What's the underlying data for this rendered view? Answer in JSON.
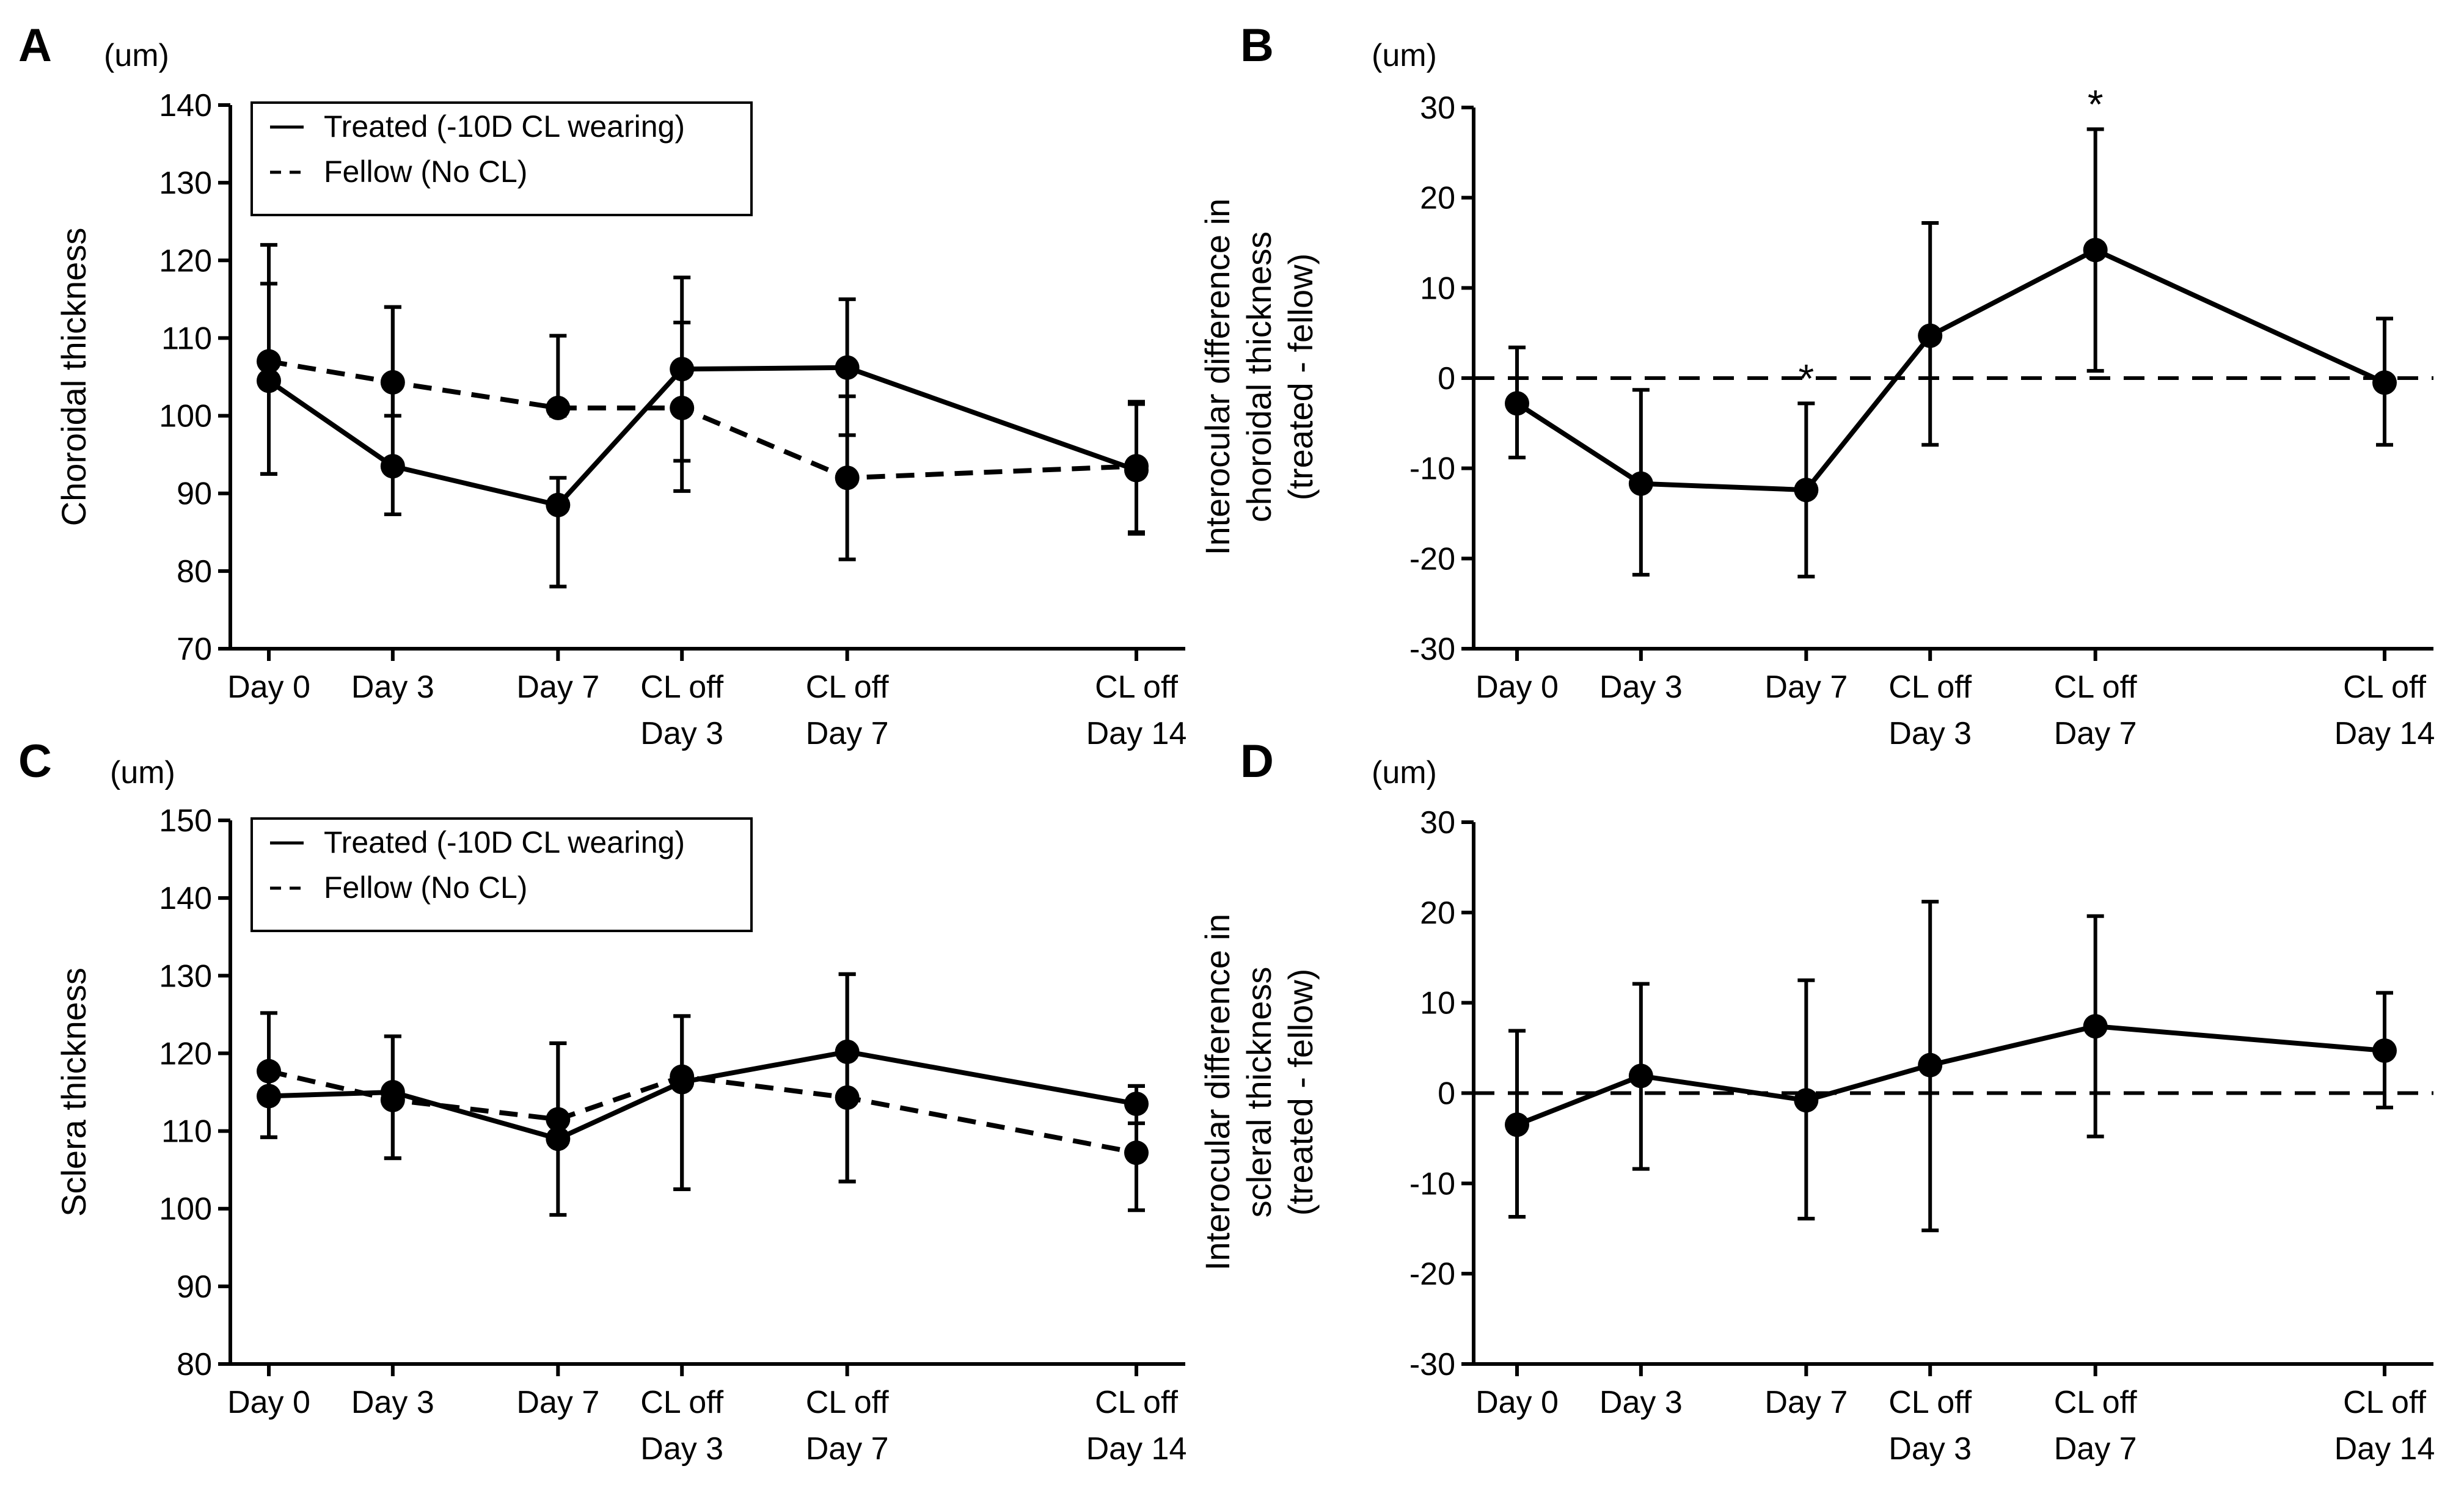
{
  "chart_data": [
    {
      "panel": "A",
      "type": "line",
      "unit_label": "(um)",
      "ylabel": "Choroidal thickness",
      "ylim": [
        70,
        140
      ],
      "yticks": [
        70,
        80,
        90,
        100,
        110,
        120,
        130,
        140
      ],
      "categories": [
        {
          "line1": "Day 0",
          "line2": "",
          "x": 0
        },
        {
          "line1": "Day 3",
          "line2": "",
          "x": 3
        },
        {
          "line1": "Day 7",
          "line2": "",
          "x": 7
        },
        {
          "line1": "CL off",
          "line2": "Day 3",
          "x": 10
        },
        {
          "line1": "CL off",
          "line2": "Day 7",
          "x": 14
        },
        {
          "line1": "CL off",
          "line2": "Day 14",
          "x": 21
        }
      ],
      "legend": [
        {
          "label": "Treated (-10D CL wearing)",
          "style": "solid"
        },
        {
          "label": "Fellow (No CL)",
          "style": "dashed"
        }
      ],
      "series": [
        {
          "name": "Treated (-10D CL wearing)",
          "style": "solid",
          "values": [
            104.5,
            93.5,
            88.5,
            106,
            106.2,
            93
          ],
          "err_low": [
            92.5,
            87.3,
            78,
            94.2,
            97.5,
            84.8
          ],
          "err_high": [
            117,
            114,
            92,
            117.8,
            115,
            101.5
          ]
        },
        {
          "name": "Fellow (No CL)",
          "style": "dashed",
          "values": [
            107,
            104.3,
            101,
            101,
            92,
            93.5
          ],
          "err_low": [
            92.5,
            100,
            100,
            90.3,
            81.5,
            85
          ],
          "err_high": [
            122,
            114,
            110.3,
            112,
            102.5,
            101.8
          ]
        }
      ],
      "annotations": []
    },
    {
      "panel": "B",
      "type": "line",
      "unit_label": "(um)",
      "ylabel_lines": [
        "Interocular difference in",
        "choroidal thickness",
        "(treated - fellow)"
      ],
      "ylim": [
        -30,
        30
      ],
      "yticks": [
        -30,
        -20,
        -10,
        0,
        10,
        20,
        30
      ],
      "zero_line": true,
      "categories": [
        {
          "line1": "Day 0",
          "line2": "",
          "x": 0
        },
        {
          "line1": "Day 3",
          "line2": "",
          "x": 3
        },
        {
          "line1": "Day 7",
          "line2": "",
          "x": 7
        },
        {
          "line1": "CL off",
          "line2": "Day 3",
          "x": 10
        },
        {
          "line1": "CL off",
          "line2": "Day 7",
          "x": 14
        },
        {
          "line1": "CL off",
          "line2": "Day 14",
          "x": 21
        }
      ],
      "legend": [],
      "series": [
        {
          "name": "Difference",
          "style": "solid",
          "values": [
            -2.8,
            -11.7,
            -12.4,
            4.7,
            14.2,
            -0.5
          ],
          "err_low": [
            -8.8,
            -21.8,
            -22,
            -7.4,
            0.8,
            -7.4
          ],
          "err_high": [
            3.4,
            -1.3,
            -2.8,
            17.2,
            27.6,
            6.6
          ]
        }
      ],
      "annotations": [
        {
          "text": "*",
          "x": 7,
          "y": -2.8
        },
        {
          "text": "*",
          "x": 14,
          "y": 27.6
        }
      ]
    },
    {
      "panel": "C",
      "type": "line",
      "unit_label": "(um)",
      "ylabel": "Sclera thickness",
      "ylim": [
        80,
        150
      ],
      "yticks": [
        80,
        90,
        100,
        110,
        120,
        130,
        140,
        150
      ],
      "categories": [
        {
          "line1": "Day 0",
          "line2": "",
          "x": 0
        },
        {
          "line1": "Day 3",
          "line2": "",
          "x": 3
        },
        {
          "line1": "Day 7",
          "line2": "",
          "x": 7
        },
        {
          "line1": "CL off",
          "line2": "Day 3",
          "x": 10
        },
        {
          "line1": "CL off",
          "line2": "Day 7",
          "x": 14
        },
        {
          "line1": "CL off",
          "line2": "Day 14",
          "x": 21
        }
      ],
      "legend": [
        {
          "label": "Treated (-10D CL wearing)",
          "style": "solid"
        },
        {
          "label": "Fellow (No CL)",
          "style": "dashed"
        }
      ],
      "series": [
        {
          "name": "Treated (-10D CL wearing)",
          "style": "solid",
          "values": [
            114.5,
            115,
            109,
            116.3,
            120.2,
            113.5
          ],
          "err_low": [
            109.2,
            106.5,
            99.2,
            102.5,
            103.5,
            111
          ],
          "err_high": [
            117.7,
            122.2,
            121.3,
            124.8,
            130.2,
            115.8
          ]
        },
        {
          "name": "Fellow (No CL)",
          "style": "dashed",
          "values": [
            117.7,
            114,
            111.5,
            117,
            114.3,
            107.2
          ],
          "err_low": [
            109.2,
            106.5,
            109,
            102.5,
            103.5,
            99.8
          ],
          "err_high": [
            125.2,
            122.2,
            121.3,
            124.8,
            130.2,
            115.8
          ]
        }
      ],
      "annotations": []
    },
    {
      "panel": "D",
      "type": "line",
      "unit_label": "(um)",
      "ylabel_lines": [
        "Interocular difference in",
        "scleral thickness",
        "(treated - fellow)"
      ],
      "ylim": [
        -30,
        30
      ],
      "yticks": [
        -30,
        -20,
        -10,
        0,
        10,
        20,
        30
      ],
      "zero_line": true,
      "categories": [
        {
          "line1": "Day 0",
          "line2": "",
          "x": 0
        },
        {
          "line1": "Day 3",
          "line2": "",
          "x": 3
        },
        {
          "line1": "Day 7",
          "line2": "",
          "x": 7
        },
        {
          "line1": "CL off",
          "line2": "Day 3",
          "x": 10
        },
        {
          "line1": "CL off",
          "line2": "Day 7",
          "x": 14
        },
        {
          "line1": "CL off",
          "line2": "Day 14",
          "x": 21
        }
      ],
      "legend": [],
      "series": [
        {
          "name": "Difference",
          "style": "solid",
          "values": [
            -3.5,
            1.9,
            -0.8,
            3.1,
            7.4,
            4.7
          ],
          "err_low": [
            -13.7,
            -8.4,
            -13.9,
            -15.2,
            -4.8,
            -1.6
          ],
          "err_high": [
            6.9,
            12.1,
            12.5,
            21.2,
            19.6,
            11.1
          ]
        }
      ],
      "annotations": []
    }
  ]
}
